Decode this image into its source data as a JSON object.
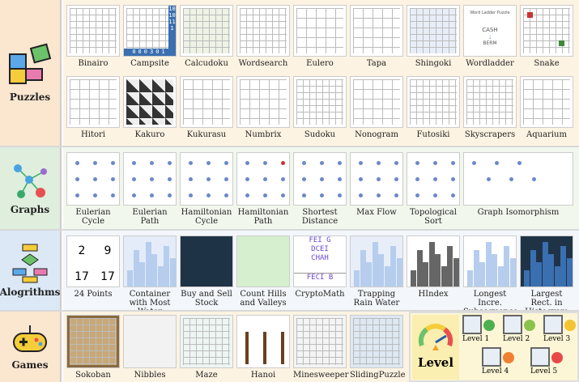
{
  "sections": {
    "puzzles": {
      "label": "Puzzles",
      "icon": "puzzle-icon",
      "color": "#fbe6d0",
      "items": [
        "Binairo",
        "Campsite",
        "Calcudoku",
        "Wordsearch",
        "Eulero",
        "Tapa",
        "Shingoki",
        "Wordladder",
        "Snake",
        "Hitori",
        "Kakuro",
        "Kukurasu",
        "Numbrix",
        "Sudoku",
        "Nonogram",
        "Futosiki",
        "Skyscrapers",
        "Aquarium"
      ],
      "wordladder": {
        "title": "Word Ladder Puzzle",
        "from": "CASH",
        "to": "BERM"
      },
      "campsite_col": "1010111",
      "campsite_row": "000301"
    },
    "graphs": {
      "label": "Graphs",
      "icon": "graph-icon",
      "color": "#dfeedd",
      "items": [
        "Eulerian Cycle",
        "Eulerian Path",
        "Hamiltonian Cycle",
        "Hamiltonian Path",
        "Shortest Distance",
        "Max Flow",
        "Topological Sort",
        "Graph Isomorphism"
      ]
    },
    "algorithms": {
      "label": "Alogrithms",
      "icon": "flowchart-icon",
      "color": "#dce8f5",
      "items": [
        "24 Points",
        "Container with Most Water",
        "Buy and Sell Stock",
        "Count Hills and Valleys",
        "CryptoMath",
        "Trapping Rain Water",
        "HIndex",
        "Longest Incre. Subsequence",
        "Largest Rect. in Histogram"
      ],
      "points_cards": [
        "2",
        "9",
        "17",
        "17"
      ],
      "crypto": [
        "FEI G",
        "DCEI",
        "CHAH",
        "FECI B"
      ]
    },
    "games": {
      "label": "Games",
      "icon": "gamepad-icon",
      "color": "#fbe6d0",
      "items": [
        "Sokoban",
        "Nibbles",
        "Maze",
        "Hanoi",
        "Minesweeper",
        "SlidingPuzzle"
      ],
      "level": {
        "label": "Level",
        "levels": [
          "Level 1",
          "Level 2",
          "Level 3",
          "Level 4",
          "Level 5"
        ],
        "face_colors": [
          "#4caf50",
          "#8bc34a",
          "#f4c430",
          "#f08030",
          "#e84848"
        ]
      }
    }
  }
}
